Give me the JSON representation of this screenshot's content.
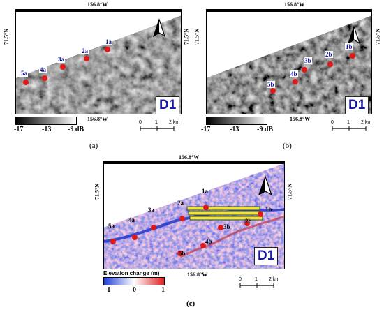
{
  "panels": [
    {
      "id": "a",
      "caption": "(a)",
      "lon_top": "156.8°W",
      "lon_bottom": "156.8°W",
      "lat": "71.5°N",
      "region": "D1",
      "sites": [
        "1a",
        "2a",
        "3a",
        "4a",
        "5a"
      ],
      "colorbar": {
        "labels": [
          "-17",
          "-13",
          "-9 dB"
        ]
      },
      "scale": {
        "labels": [
          "0",
          "1",
          "2 km"
        ]
      }
    },
    {
      "id": "b",
      "caption": "(b)",
      "lon_top": "156.8°W",
      "lon_bottom": "156.8°W",
      "lat": "71.5°N",
      "region": "D1",
      "sites": [
        "1b",
        "2b",
        "3b",
        "4b",
        "5b"
      ],
      "colorbar": {
        "labels": [
          "-17",
          "-13",
          "-9 dB"
        ]
      },
      "scale": {
        "labels": [
          "0",
          "1",
          "2 km"
        ]
      }
    },
    {
      "id": "c",
      "caption": "(c)",
      "lon_top": "156.8°W",
      "lon_bottom": "156.8°W",
      "lat": "71.5°N",
      "region": "D1",
      "sites": [
        "1a",
        "2a",
        "3a",
        "4a",
        "5a",
        "1b",
        "2b",
        "3b",
        "4b",
        "5b"
      ],
      "colorbar": {
        "title": "Elevation change (m)",
        "labels": [
          "-1",
          "0",
          "1"
        ]
      },
      "scale": {
        "labels": [
          "0",
          "1",
          "2 km"
        ]
      }
    }
  ],
  "colors": {
    "site_marker": "#e01818",
    "label_text": "#1a1aa8",
    "elev_low": "#1f3fd8",
    "elev_mid": "#ffffff",
    "elev_high": "#e02020",
    "track_fill": "#f3e23a"
  },
  "icons": [
    "north-arrow-icon"
  ]
}
